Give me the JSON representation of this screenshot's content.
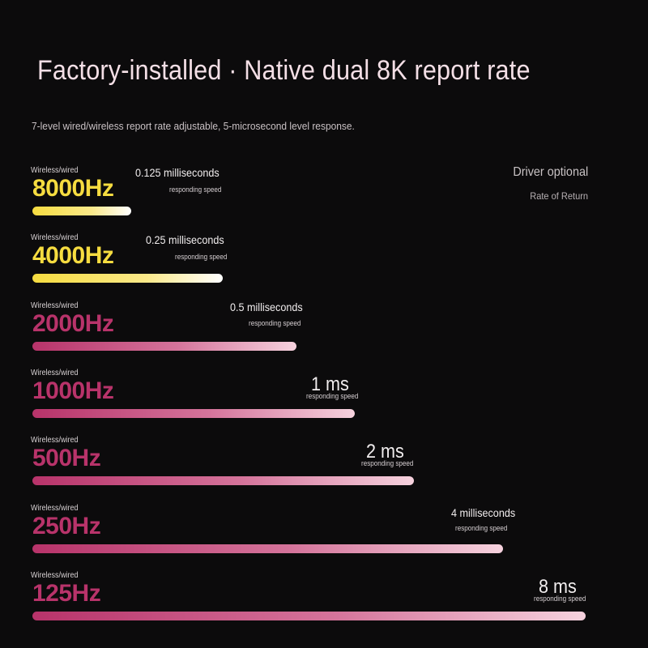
{
  "header": {
    "title": "Factory-installed · Native dual 8K report rate",
    "subtitle": "7-level wired/wireless report rate adjustable, 5-microsecond level response."
  },
  "side": {
    "driver_label": "Driver optional",
    "rate_label": "Rate of Return"
  },
  "colors": {
    "yellow": "#f6dc40",
    "pink": "#b8336a",
    "light_pink": "#f6d2de"
  },
  "chart_data": {
    "type": "bar",
    "orientation": "horizontal",
    "categories": [
      "8000Hz",
      "4000Hz",
      "2000Hz",
      "1000Hz",
      "500Hz",
      "250Hz",
      "125Hz"
    ],
    "mode_label": "Wireless/wired",
    "unit_label": "responding speed",
    "values": [
      0.125,
      0.25,
      0.5,
      1,
      2,
      4,
      8
    ],
    "value_labels": [
      "0.125 milliseconds",
      "0.25 milliseconds",
      "0.5 milliseconds",
      "1 ms",
      "2 ms",
      "4 milliseconds",
      "8 ms"
    ],
    "highlight": [
      "8000Hz",
      "4000Hz"
    ]
  }
}
